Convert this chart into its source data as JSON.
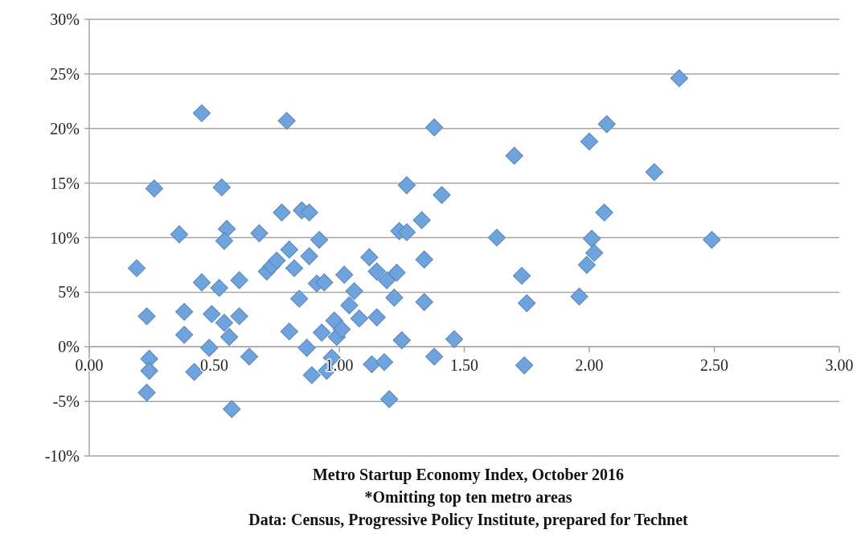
{
  "chart_data": {
    "type": "scatter",
    "xlabel": "Metro Startup Economy Index, October 2016",
    "annotations": [
      "*Omitting top ten metro areas",
      "Data: Census, Progressive Policy Institute, prepared for Technet"
    ],
    "xlim": [
      0,
      3
    ],
    "xticks": [
      {
        "value": 0,
        "label": "0.00"
      },
      {
        "value": 0.5,
        "label": "0.50"
      },
      {
        "value": 1,
        "label": "1.00"
      },
      {
        "value": 1.5,
        "label": "1.50"
      },
      {
        "value": 2,
        "label": "2.00"
      },
      {
        "value": 2.5,
        "label": "2.50"
      },
      {
        "value": 3,
        "label": "3.00"
      }
    ],
    "ylim": [
      -10,
      30
    ],
    "yticks": [
      {
        "value": -10,
        "label": "-10%"
      },
      {
        "value": -5,
        "label": "-5%"
      },
      {
        "value": 0,
        "label": "0%"
      },
      {
        "value": 5,
        "label": "5%"
      },
      {
        "value": 10,
        "label": "10%"
      },
      {
        "value": 15,
        "label": "15%"
      },
      {
        "value": 20,
        "label": "20%"
      },
      {
        "value": 25,
        "label": "25%"
      },
      {
        "value": 30,
        "label": "30%"
      }
    ],
    "grid": "y",
    "marker": "diamond",
    "series": [
      {
        "color": "#6fa3de",
        "x": [
          0.19,
          0.23,
          0.24,
          0.24,
          0.23,
          0.26,
          0.36,
          0.38,
          0.38,
          0.42,
          0.45,
          0.45,
          0.48,
          0.49,
          0.52,
          0.53,
          0.55,
          0.54,
          0.54,
          0.56,
          0.57,
          0.6,
          0.6,
          0.64,
          0.68,
          0.71,
          0.73,
          0.75,
          0.77,
          0.8,
          0.82,
          0.79,
          0.8,
          0.84,
          0.85,
          0.88,
          0.88,
          0.87,
          0.89,
          0.92,
          0.91,
          0.94,
          0.93,
          0.97,
          0.95,
          0.98,
          0.99,
          1.01,
          1.02,
          1.04,
          1.06,
          1.08,
          1.12,
          1.13,
          1.15,
          1.15,
          1.19,
          1.18,
          1.2,
          1.22,
          1.23,
          1.24,
          1.27,
          1.25,
          1.27,
          1.33,
          1.34,
          1.34,
          1.38,
          1.38,
          1.41,
          1.46,
          1.63,
          1.7,
          1.73,
          1.75,
          1.74,
          1.96,
          1.99,
          2,
          2.01,
          2.02,
          2.06,
          2.07,
          2.26,
          2.36,
          2.49
        ],
        "values": [
          7.2,
          2.8,
          -1.1,
          -2.2,
          -4.2,
          14.5,
          10.3,
          3.2,
          1.1,
          -2.3,
          21.4,
          5.9,
          -0.1,
          3,
          5.4,
          14.6,
          10.8,
          9.7,
          2.2,
          0.9,
          -5.7,
          6.1,
          2.8,
          -0.9,
          10.4,
          6.9,
          7.4,
          7.9,
          12.3,
          8.9,
          7.2,
          20.7,
          1.4,
          4.4,
          12.5,
          12.3,
          8.3,
          -0.1,
          -2.6,
          9.8,
          5.8,
          5.9,
          1.3,
          -1,
          -2.2,
          2.4,
          0.9,
          1.6,
          6.6,
          3.8,
          5.1,
          2.6,
          8.2,
          -1.6,
          6.9,
          2.7,
          6.1,
          -1.4,
          -4.8,
          4.5,
          6.8,
          10.6,
          10.5,
          0.6,
          14.8,
          11.6,
          8,
          4.1,
          20.1,
          -0.9,
          13.9,
          0.7,
          10,
          17.5,
          6.5,
          4,
          -1.7,
          4.6,
          7.5,
          18.8,
          9.9,
          8.6,
          12.3,
          20.4,
          16,
          24.6,
          9.8
        ]
      }
    ]
  }
}
